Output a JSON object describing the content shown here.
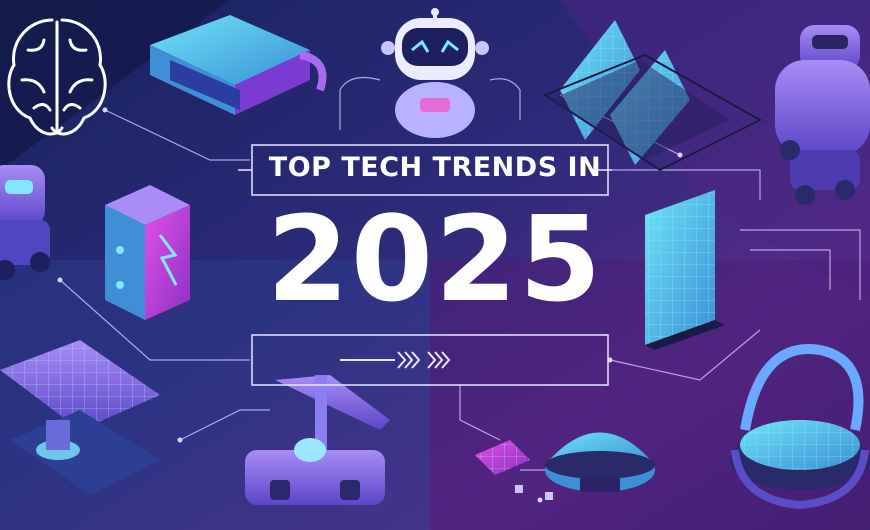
{
  "banner": {
    "headline_top": "TOP TECH TRENDS IN",
    "headline_year": "2025"
  },
  "colors": {
    "background_dark": "#1b1d5c",
    "background_purple": "#5a2a8a",
    "accent_magenta": "#c03ad6",
    "accent_cyan": "#4fd6f2",
    "accent_violet": "#8e6cf0",
    "headline_text": "#ffffff"
  },
  "illustrations": [
    "brain-icon",
    "vr-headset-icon",
    "robot-head-icon",
    "solar-panel-icon",
    "humanoid-robot-icon",
    "rover-robot-icon",
    "battery-cell-icon",
    "solar-panel-array-icon",
    "robotic-arm-icon",
    "drone-icon",
    "chip-icon",
    "hologram-dome-icon"
  ]
}
